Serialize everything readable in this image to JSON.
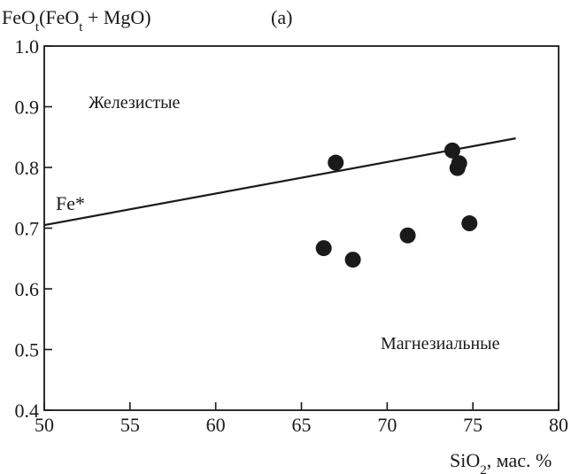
{
  "chart_data": {
    "type": "scatter",
    "title": "",
    "panel_label": "(a)",
    "ylabel": {
      "main": "FeO",
      "sub1": "t",
      "mid": "(FeO",
      "sub2": "t",
      "end": " + MgO)"
    },
    "xlabel": {
      "main": "SiO",
      "sub": "2",
      "end": ", мас. %"
    },
    "xlim": [
      50,
      80
    ],
    "ylim": [
      0.4,
      1.0
    ],
    "xticks": [
      50,
      55,
      60,
      65,
      70,
      75,
      80
    ],
    "yticks": [
      0.4,
      0.5,
      0.6,
      0.7,
      0.8,
      0.9,
      1.0
    ],
    "ytick_labels": [
      "0.4",
      "0.5",
      "0.6",
      "0.7",
      "0.8",
      "0.9",
      "1.0"
    ],
    "grid": false,
    "points": [
      {
        "x": 66.3,
        "y": 0.667
      },
      {
        "x": 67.0,
        "y": 0.808
      },
      {
        "x": 68.0,
        "y": 0.648
      },
      {
        "x": 71.2,
        "y": 0.688
      },
      {
        "x": 73.8,
        "y": 0.828
      },
      {
        "x": 74.1,
        "y": 0.799
      },
      {
        "x": 74.2,
        "y": 0.807
      },
      {
        "x": 74.8,
        "y": 0.708
      }
    ],
    "boundary_line": {
      "label": "Fe*",
      "x": [
        50,
        77.5
      ],
      "y": [
        0.705,
        0.848
      ]
    },
    "region_labels": {
      "upper": "Железистые",
      "lower": "Магнезиальные"
    },
    "colors": {
      "points": "#1a1a1a",
      "line": "#1a1a1a",
      "axes": "#1a1a1a"
    }
  }
}
